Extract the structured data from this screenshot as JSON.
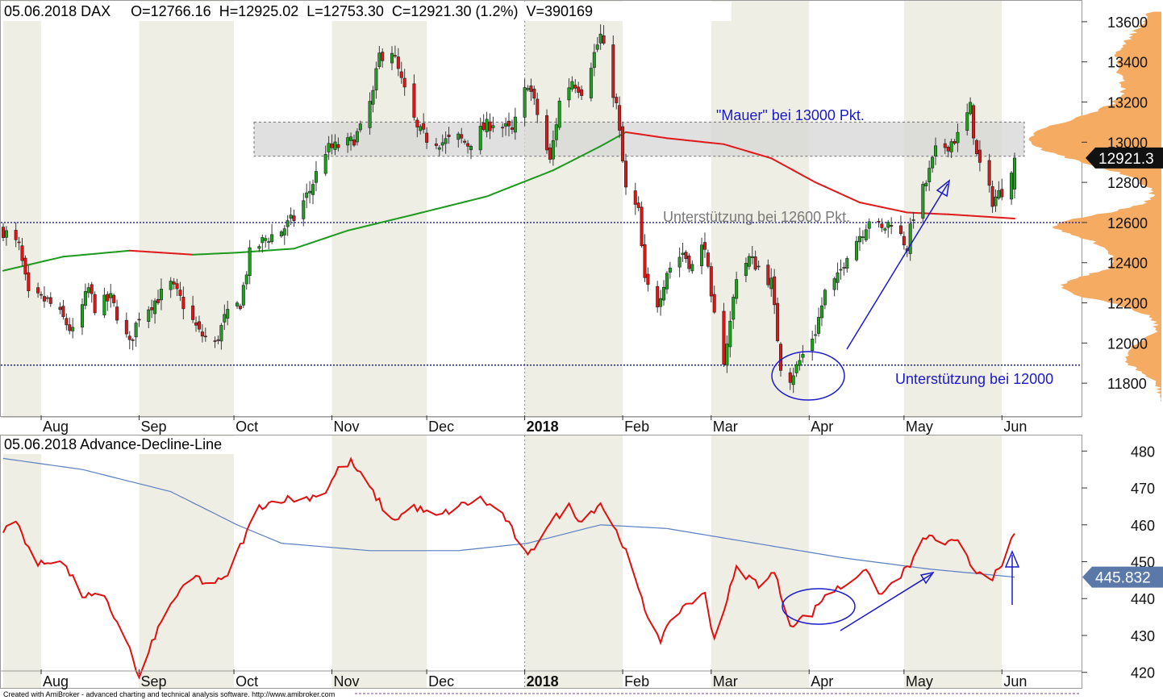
{
  "app": {
    "footer": "Created with AmiBroker - advanced charting and technical analysis software. http://www.amibroker.com"
  },
  "chart_data": [
    {
      "type": "candlestick",
      "header": "05.06.2018 DAX     O=12766.16  H=12925.02  L=12753.30  C=12921.30 (1.2%)  V=390169",
      "symbol": "DAX",
      "date": "05.06.2018",
      "ohlc": {
        "open": 12766.16,
        "high": 12925.02,
        "low": 12753.3,
        "close": 12921.3,
        "change_pct": 1.2,
        "volume": 390169
      },
      "last_value_label": "12921.3",
      "ylim": [
        11640,
        13700
      ],
      "yticks": [
        11800,
        12000,
        12200,
        12400,
        12600,
        12800,
        13000,
        13200,
        13400,
        13600
      ],
      "x_months": [
        "Aug",
        "Sep",
        "Oct",
        "Nov",
        "Dec",
        "2018",
        "Feb",
        "Mar",
        "Apr",
        "May",
        "Jun"
      ],
      "annotations": {
        "resistance_text": "\"Mauer\" bei 13000 Pkt.",
        "support1_text": "Unterstützung bei 12600 Pkt.",
        "support2_text": "Unterstützung bei 12000",
        "support1_level": 12600,
        "support2_level": 11890,
        "resistance_zone": [
          12930,
          13100
        ]
      },
      "anchors": [
        [
          "2017-07-20",
          12560
        ],
        [
          "2017-07-25",
          12480
        ],
        [
          "2017-07-28",
          12230
        ],
        [
          "2017-08-03",
          12210
        ],
        [
          "2017-08-08",
          12120
        ],
        [
          "2017-08-11",
          12050
        ],
        [
          "2017-08-16",
          12270
        ],
        [
          "2017-08-18",
          12180
        ],
        [
          "2017-08-23",
          12220
        ],
        [
          "2017-08-29",
          11990
        ],
        [
          "2017-09-01",
          12140
        ],
        [
          "2017-09-06",
          12210
        ],
        [
          "2017-09-11",
          12290
        ],
        [
          "2017-09-14",
          12220
        ],
        [
          "2017-09-20",
          12050
        ],
        [
          "2017-09-25",
          11990
        ],
        [
          "2017-09-28",
          12120
        ],
        [
          "2017-10-03",
          12200
        ],
        [
          "2017-10-06",
          12440
        ],
        [
          "2017-10-11",
          12520
        ],
        [
          "2017-10-16",
          12560
        ],
        [
          "2017-10-20",
          12620
        ],
        [
          "2017-10-25",
          12760
        ],
        [
          "2017-10-30",
          12960
        ],
        [
          "2017-11-03",
          12980
        ],
        [
          "2017-11-07",
          13000
        ],
        [
          "2017-11-10",
          13060
        ],
        [
          "2017-11-14",
          13240
        ],
        [
          "2017-11-16",
          13430
        ],
        [
          "2017-11-20",
          13460
        ],
        [
          "2017-11-23",
          13300
        ],
        [
          "2017-11-28",
          13060
        ],
        [
          "2017-12-01",
          13020
        ],
        [
          "2017-12-06",
          13000
        ],
        [
          "2017-12-11",
          13020
        ],
        [
          "2017-12-14",
          12990
        ],
        [
          "2017-12-19",
          13070
        ],
        [
          "2017-12-22",
          13100
        ],
        [
          "2017-12-28",
          13050
        ],
        [
          "2018-01-02",
          13300
        ],
        [
          "2018-01-05",
          13140
        ],
        [
          "2018-01-09",
          12900
        ],
        [
          "2018-01-12",
          13200
        ],
        [
          "2018-01-16",
          13310
        ],
        [
          "2018-01-19",
          13260
        ],
        [
          "2018-01-23",
          13440
        ],
        [
          "2018-01-25",
          13530
        ],
        [
          "2018-01-30",
          13180
        ],
        [
          "2018-02-02",
          12760
        ],
        [
          "2018-02-06",
          12650
        ],
        [
          "2018-02-08",
          12300
        ],
        [
          "2018-02-12",
          12200
        ],
        [
          "2018-02-15",
          12360
        ],
        [
          "2018-02-20",
          12450
        ],
        [
          "2018-02-23",
          12380
        ],
        [
          "2018-02-27",
          12500
        ],
        [
          "2018-03-01",
          12200
        ],
        [
          "2018-03-05",
          11920
        ],
        [
          "2018-03-07",
          12100
        ],
        [
          "2018-03-09",
          12340
        ],
        [
          "2018-03-13",
          12420
        ],
        [
          "2018-03-16",
          12380
        ],
        [
          "2018-03-20",
          12300
        ],
        [
          "2018-03-23",
          11890
        ],
        [
          "2018-03-26",
          11830
        ],
        [
          "2018-03-28",
          11880
        ],
        [
          "2018-04-03",
          12060
        ],
        [
          "2018-04-06",
          12250
        ],
        [
          "2018-04-10",
          12320
        ],
        [
          "2018-04-13",
          12450
        ],
        [
          "2018-04-18",
          12560
        ],
        [
          "2018-04-20",
          12620
        ],
        [
          "2018-04-24",
          12560
        ],
        [
          "2018-04-27",
          12610
        ],
        [
          "2018-05-02",
          12480
        ],
        [
          "2018-05-04",
          12640
        ],
        [
          "2018-05-08",
          12800
        ],
        [
          "2018-05-11",
          12950
        ],
        [
          "2018-05-15",
          12990
        ],
        [
          "2018-05-18",
          13030
        ],
        [
          "2018-05-22",
          13170
        ],
        [
          "2018-05-24",
          12930
        ],
        [
          "2018-05-29",
          12710
        ],
        [
          "2018-06-01",
          12760
        ],
        [
          "2018-06-05",
          12921.3
        ]
      ],
      "ma_anchors": [
        [
          "2017-07-20",
          12360
        ],
        [
          "2017-08-08",
          12430
        ],
        [
          "2017-08-29",
          12460
        ],
        [
          "2017-09-18",
          12440
        ],
        [
          "2017-10-02",
          12450
        ],
        [
          "2017-10-20",
          12470
        ],
        [
          "2017-11-06",
          12560
        ],
        [
          "2017-11-27",
          12640
        ],
        [
          "2017-12-20",
          12730
        ],
        [
          "2018-01-10",
          12860
        ],
        [
          "2018-01-25",
          12980
        ],
        [
          "2018-02-02",
          13050
        ],
        [
          "2018-02-15",
          13020
        ],
        [
          "2018-03-05",
          12990
        ],
        [
          "2018-03-20",
          12920
        ],
        [
          "2018-04-03",
          12800
        ],
        [
          "2018-04-17",
          12700
        ],
        [
          "2018-05-02",
          12650
        ],
        [
          "2018-05-16",
          12640
        ],
        [
          "2018-06-05",
          12620
        ]
      ]
    },
    {
      "type": "line",
      "header": "05.06.2018 Advance-Decline-Line",
      "last_value_label": "445.832",
      "ylim": [
        416,
        484
      ],
      "yticks": [
        420,
        430,
        440,
        450,
        460,
        470,
        480
      ],
      "x_months": [
        "Aug",
        "Sep",
        "Oct",
        "Nov",
        "Dec",
        "2018",
        "Feb",
        "Mar",
        "Apr",
        "May",
        "Jun"
      ],
      "adl_anchors": [
        [
          "2017-07-20",
          458
        ],
        [
          "2017-07-24",
          461
        ],
        [
          "2017-07-31",
          449
        ],
        [
          "2017-08-07",
          451
        ],
        [
          "2017-08-14",
          441
        ],
        [
          "2017-08-21",
          440
        ],
        [
          "2017-08-28",
          429
        ],
        [
          "2017-09-01",
          418
        ],
        [
          "2017-09-06",
          430
        ],
        [
          "2017-09-12",
          440
        ],
        [
          "2017-09-19",
          446
        ],
        [
          "2017-09-22",
          444
        ],
        [
          "2017-09-28",
          445
        ],
        [
          "2017-10-04",
          456
        ],
        [
          "2017-10-09",
          465
        ],
        [
          "2017-10-16",
          467
        ],
        [
          "2017-10-23",
          467
        ],
        [
          "2017-10-30",
          469
        ],
        [
          "2017-11-03",
          475
        ],
        [
          "2017-11-07",
          477
        ],
        [
          "2017-11-13",
          470
        ],
        [
          "2017-11-20",
          461
        ],
        [
          "2017-11-27",
          465
        ],
        [
          "2017-12-04",
          462
        ],
        [
          "2017-12-11",
          465
        ],
        [
          "2017-12-18",
          467
        ],
        [
          "2017-12-25",
          463
        ],
        [
          "2018-01-02",
          451
        ],
        [
          "2018-01-08",
          460
        ],
        [
          "2018-01-15",
          465
        ],
        [
          "2018-01-19",
          461
        ],
        [
          "2018-01-25",
          466
        ],
        [
          "2018-02-01",
          455
        ],
        [
          "2018-02-08",
          437
        ],
        [
          "2018-02-13",
          429
        ],
        [
          "2018-02-20",
          438
        ],
        [
          "2018-02-27",
          441
        ],
        [
          "2018-03-02",
          429
        ],
        [
          "2018-03-09",
          448
        ],
        [
          "2018-03-16",
          444
        ],
        [
          "2018-03-21",
          447
        ],
        [
          "2018-03-26",
          433
        ],
        [
          "2018-04-02",
          436
        ],
        [
          "2018-04-06",
          441
        ],
        [
          "2018-04-13",
          444
        ],
        [
          "2018-04-18",
          448
        ],
        [
          "2018-04-24",
          441
        ],
        [
          "2018-04-27",
          444
        ],
        [
          "2018-05-03",
          449
        ],
        [
          "2018-05-08",
          457
        ],
        [
          "2018-05-14",
          455
        ],
        [
          "2018-05-18",
          455
        ],
        [
          "2018-05-23",
          448
        ],
        [
          "2018-05-29",
          446
        ],
        [
          "2018-06-01",
          448
        ],
        [
          "2018-06-05",
          458
        ]
      ],
      "ma_anchors": [
        [
          "2017-07-20",
          478
        ],
        [
          "2017-08-14",
          475
        ],
        [
          "2017-09-11",
          469
        ],
        [
          "2017-10-02",
          460
        ],
        [
          "2017-10-16",
          455
        ],
        [
          "2017-11-13",
          453
        ],
        [
          "2017-12-11",
          453
        ],
        [
          "2018-01-02",
          455
        ],
        [
          "2018-01-25",
          460
        ],
        [
          "2018-02-15",
          459
        ],
        [
          "2018-03-15",
          455
        ],
        [
          "2018-04-12",
          451
        ],
        [
          "2018-05-09",
          448
        ],
        [
          "2018-06-05",
          445.832
        ]
      ]
    }
  ]
}
